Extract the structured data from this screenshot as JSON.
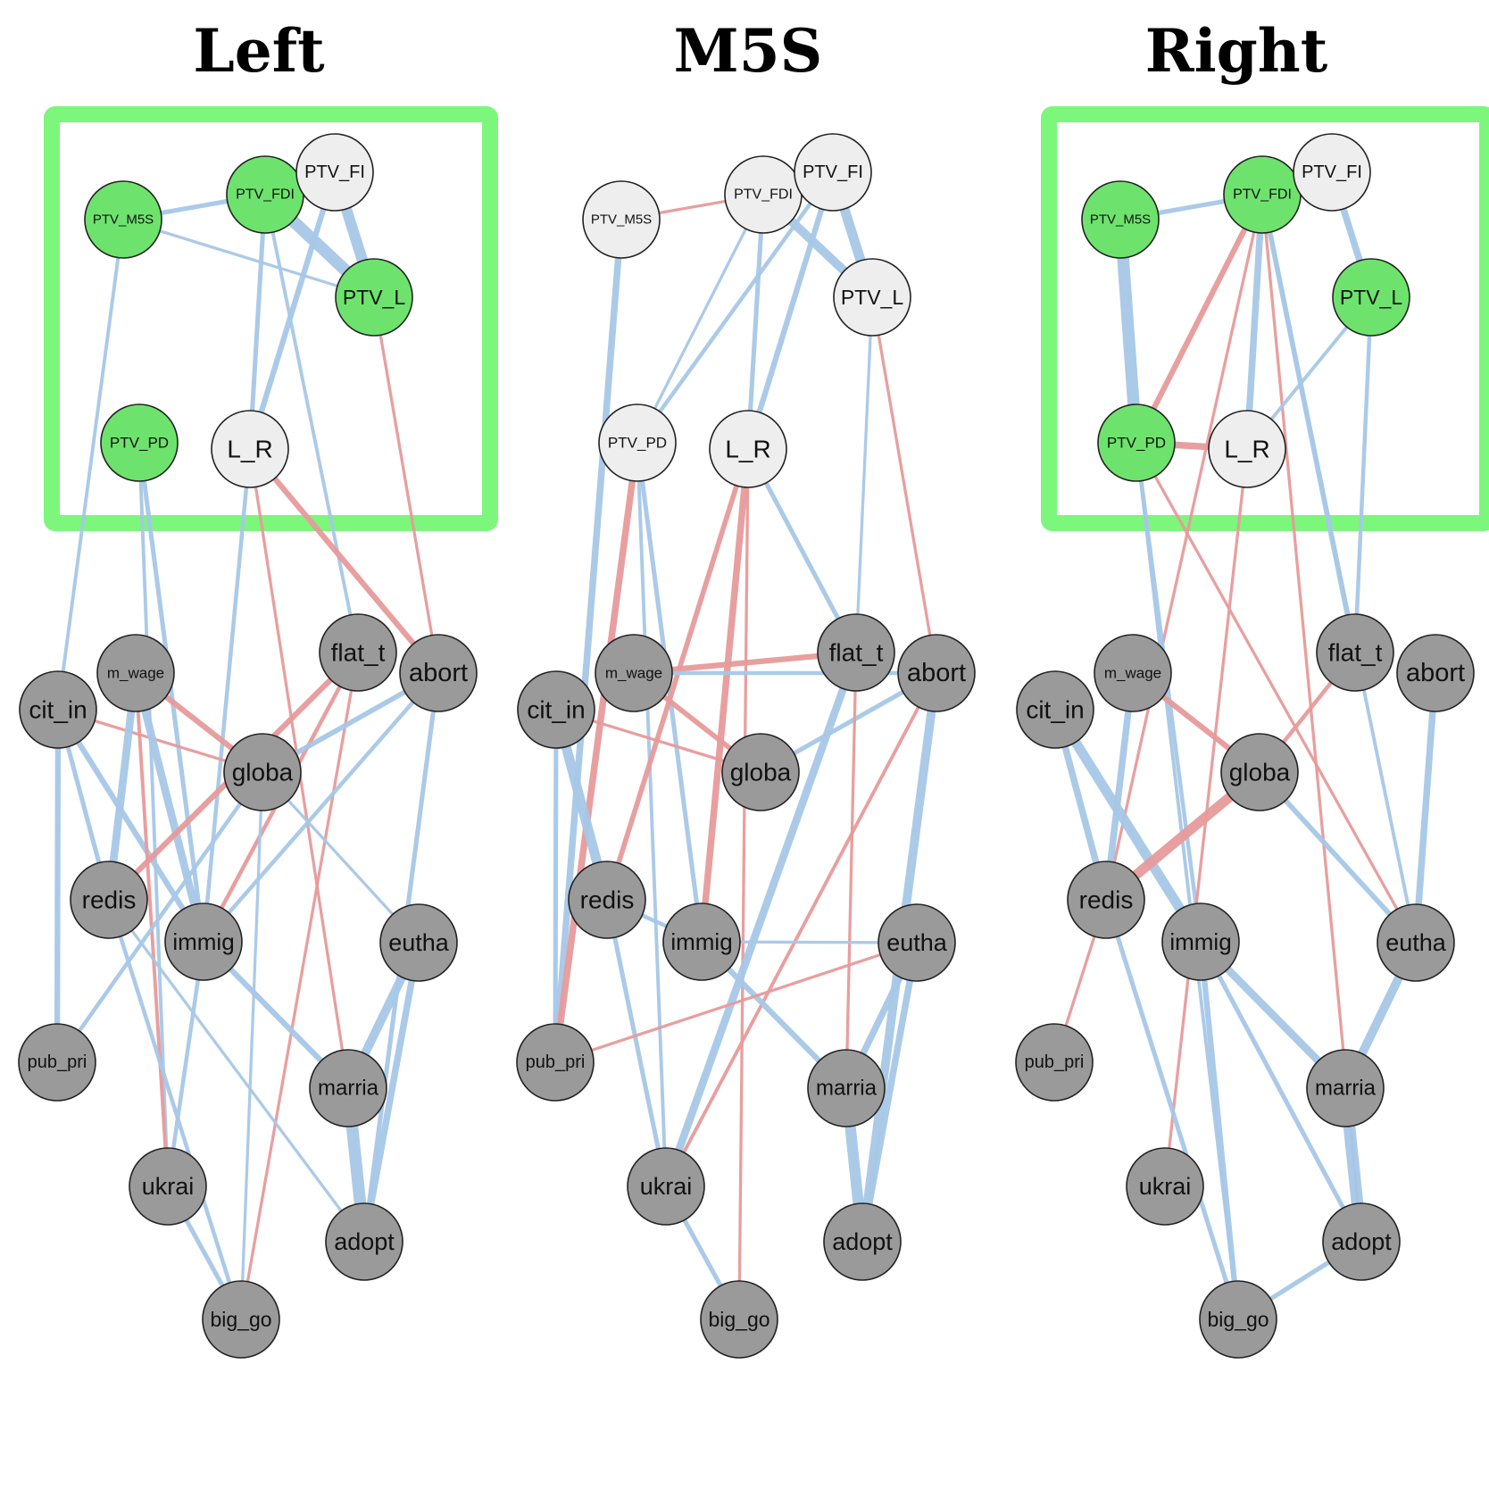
{
  "colors": {
    "positive_edge": "#a7c7e7",
    "negative_edge": "#e79a9a",
    "highlight_box": "#7cf77c",
    "highlight_node": "#6de36d",
    "neutral_ptv_node": "#eeeeee",
    "item_node": "#9a9a9a",
    "node_border": "#222222"
  },
  "panels": [
    {
      "title": "Left",
      "highlight_box": true,
      "highlighted_nodes": [
        "PTV_M5S",
        "PTV_FDI",
        "PTV_L",
        "PTV_PD"
      ],
      "edges": [
        {
          "from": "PTV_M5S",
          "to": "PTV_FDI",
          "sign": "positive",
          "weight": 0.3
        },
        {
          "from": "PTV_FDI",
          "to": "PTV_L",
          "sign": "positive",
          "weight": 1.0
        },
        {
          "from": "PTV_FI",
          "to": "PTV_L",
          "sign": "positive",
          "weight": 0.9
        },
        {
          "from": "PTV_M5S",
          "to": "PTV_L",
          "sign": "positive",
          "weight": 0.15
        },
        {
          "from": "PTV_M5S",
          "to": "cit_in",
          "sign": "positive",
          "weight": 0.2
        },
        {
          "from": "PTV_FDI",
          "to": "L_R",
          "sign": "positive",
          "weight": 0.3
        },
        {
          "from": "PTV_FI",
          "to": "L_R",
          "sign": "positive",
          "weight": 0.4
        },
        {
          "from": "PTV_FDI",
          "to": "flat_t",
          "sign": "positive",
          "weight": 0.2
        },
        {
          "from": "PTV_L",
          "to": "abort",
          "sign": "negative",
          "weight": 0.15
        },
        {
          "from": "L_R",
          "to": "abort",
          "sign": "negative",
          "weight": 0.4
        },
        {
          "from": "L_R",
          "to": "marria",
          "sign": "negative",
          "weight": 0.15
        },
        {
          "from": "L_R",
          "to": "immig",
          "sign": "positive",
          "weight": 0.25
        },
        {
          "from": "PTV_PD",
          "to": "immig",
          "sign": "positive",
          "weight": 0.3
        },
        {
          "from": "PTV_PD",
          "to": "ukrai",
          "sign": "positive",
          "weight": 0.2
        },
        {
          "from": "cit_in",
          "to": "pub_pri",
          "sign": "positive",
          "weight": 0.4
        },
        {
          "from": "cit_in",
          "to": "redis",
          "sign": "positive",
          "weight": 0.3
        },
        {
          "from": "cit_in",
          "to": "immig",
          "sign": "positive",
          "weight": 0.4
        },
        {
          "from": "cit_in",
          "to": "globa",
          "sign": "negative",
          "weight": 0.15
        },
        {
          "from": "m_wage",
          "to": "redis",
          "sign": "positive",
          "weight": 0.6
        },
        {
          "from": "m_wage",
          "to": "immig",
          "sign": "positive",
          "weight": 0.6
        },
        {
          "from": "m_wage",
          "to": "globa",
          "sign": "negative",
          "weight": 0.4
        },
        {
          "from": "m_wage",
          "to": "ukrai",
          "sign": "negative",
          "weight": 0.2
        },
        {
          "from": "flat_t",
          "to": "redis",
          "sign": "negative",
          "weight": 0.4
        },
        {
          "from": "flat_t",
          "to": "immig",
          "sign": "negative",
          "weight": 0.25
        },
        {
          "from": "flat_t",
          "to": "big_go",
          "sign": "negative",
          "weight": 0.15
        },
        {
          "from": "abort",
          "to": "globa",
          "sign": "positive",
          "weight": 0.35
        },
        {
          "from": "abort",
          "to": "immig",
          "sign": "positive",
          "weight": 0.25
        },
        {
          "from": "abort",
          "to": "adopt",
          "sign": "positive",
          "weight": 0.3
        },
        {
          "from": "globa",
          "to": "eutha",
          "sign": "positive",
          "weight": 0.15
        },
        {
          "from": "globa",
          "to": "big_go",
          "sign": "positive",
          "weight": 0.15
        },
        {
          "from": "globa",
          "to": "pub_pri",
          "sign": "positive",
          "weight": 0.25
        },
        {
          "from": "redis",
          "to": "big_go",
          "sign": "positive",
          "weight": 0.25
        },
        {
          "from": "redis",
          "to": "adopt",
          "sign": "positive",
          "weight": 0.15
        },
        {
          "from": "immig",
          "to": "marria",
          "sign": "positive",
          "weight": 0.4
        },
        {
          "from": "immig",
          "to": "ukrai",
          "sign": "positive",
          "weight": 0.25
        },
        {
          "from": "eutha",
          "to": "marria",
          "sign": "positive",
          "weight": 0.7
        },
        {
          "from": "eutha",
          "to": "adopt",
          "sign": "positive",
          "weight": 0.5
        },
        {
          "from": "marria",
          "to": "adopt",
          "sign": "positive",
          "weight": 1.0
        },
        {
          "from": "ukrai",
          "to": "big_go",
          "sign": "positive",
          "weight": 0.3
        }
      ]
    },
    {
      "title": "M5S",
      "highlight_box": false,
      "highlighted_nodes": [],
      "edges": [
        {
          "from": "PTV_M5S",
          "to": "PTV_FDI",
          "sign": "negative",
          "weight": 0.15
        },
        {
          "from": "PTV_FDI",
          "to": "PTV_L",
          "sign": "positive",
          "weight": 0.7
        },
        {
          "from": "PTV_FI",
          "to": "PTV_L",
          "sign": "positive",
          "weight": 0.8
        },
        {
          "from": "PTV_M5S",
          "to": "pub_pri",
          "sign": "positive",
          "weight": 0.5
        },
        {
          "from": "PTV_FDI",
          "to": "PTV_PD",
          "sign": "positive",
          "weight": 0.15
        },
        {
          "from": "PTV_FDI",
          "to": "L_R",
          "sign": "positive",
          "weight": 0.3
        },
        {
          "from": "PTV_FI",
          "to": "L_R",
          "sign": "positive",
          "weight": 0.4
        },
        {
          "from": "PTV_FI",
          "to": "PTV_PD",
          "sign": "positive",
          "weight": 0.25
        },
        {
          "from": "PTV_L",
          "to": "abort",
          "sign": "negative",
          "weight": 0.15
        },
        {
          "from": "PTV_L",
          "to": "flat_t",
          "sign": "positive",
          "weight": 0.15
        },
        {
          "from": "PTV_PD",
          "to": "pub_pri",
          "sign": "negative",
          "weight": 0.5
        },
        {
          "from": "PTV_PD",
          "to": "immig",
          "sign": "positive",
          "weight": 0.3
        },
        {
          "from": "PTV_PD",
          "to": "ukrai",
          "sign": "positive",
          "weight": 0.2
        },
        {
          "from": "L_R",
          "to": "immig",
          "sign": "negative",
          "weight": 0.5
        },
        {
          "from": "L_R",
          "to": "redis",
          "sign": "negative",
          "weight": 0.35
        },
        {
          "from": "L_R",
          "to": "flat_t",
          "sign": "positive",
          "weight": 0.3
        },
        {
          "from": "L_R",
          "to": "big_go",
          "sign": "negative",
          "weight": 0.15
        },
        {
          "from": "m_wage",
          "to": "flat_t",
          "sign": "negative",
          "weight": 0.4
        },
        {
          "from": "m_wage",
          "to": "globa",
          "sign": "negative",
          "weight": 0.35
        },
        {
          "from": "m_wage",
          "to": "abort",
          "sign": "positive",
          "weight": 0.25
        },
        {
          "from": "cit_in",
          "to": "redis",
          "sign": "positive",
          "weight": 0.8
        },
        {
          "from": "cit_in",
          "to": "globa",
          "sign": "negative",
          "weight": 0.15
        },
        {
          "from": "cit_in",
          "to": "pub_pri",
          "sign": "positive",
          "weight": 0.3
        },
        {
          "from": "globa",
          "to": "abort",
          "sign": "positive",
          "weight": 0.3
        },
        {
          "from": "flat_t",
          "to": "ukrai",
          "sign": "positive",
          "weight": 0.6
        },
        {
          "from": "flat_t",
          "to": "marria",
          "sign": "negative",
          "weight": 0.15
        },
        {
          "from": "abort",
          "to": "adopt",
          "sign": "positive",
          "weight": 0.7
        },
        {
          "from": "abort",
          "to": "ukrai",
          "sign": "negative",
          "weight": 0.2
        },
        {
          "from": "redis",
          "to": "immig",
          "sign": "positive",
          "weight": 0.25
        },
        {
          "from": "redis",
          "to": "ukrai",
          "sign": "positive",
          "weight": 0.3
        },
        {
          "from": "immig",
          "to": "eutha",
          "sign": "positive",
          "weight": 0.15
        },
        {
          "from": "immig",
          "to": "marria",
          "sign": "positive",
          "weight": 0.4
        },
        {
          "from": "eutha",
          "to": "marria",
          "sign": "positive",
          "weight": 0.5
        },
        {
          "from": "eutha",
          "to": "adopt",
          "sign": "positive",
          "weight": 0.5
        },
        {
          "from": "eutha",
          "to": "pub_pri",
          "sign": "negative",
          "weight": 0.15
        },
        {
          "from": "marria",
          "to": "adopt",
          "sign": "positive",
          "weight": 0.9
        },
        {
          "from": "ukrai",
          "to": "big_go",
          "sign": "positive",
          "weight": 0.3
        }
      ]
    },
    {
      "title": "Right",
      "highlight_box": true,
      "highlighted_nodes": [
        "PTV_M5S",
        "PTV_FDI",
        "PTV_L",
        "PTV_PD"
      ],
      "edges": [
        {
          "from": "PTV_M5S",
          "to": "PTV_FDI",
          "sign": "positive",
          "weight": 0.3
        },
        {
          "from": "PTV_M5S",
          "to": "PTV_PD",
          "sign": "positive",
          "weight": 1.0
        },
        {
          "from": "PTV_FI",
          "to": "PTV_L",
          "sign": "positive",
          "weight": 0.5
        },
        {
          "from": "PTV_FDI",
          "to": "PTV_PD",
          "sign": "negative",
          "weight": 0.4
        },
        {
          "from": "PTV_FDI",
          "to": "L_R",
          "sign": "positive",
          "weight": 0.5
        },
        {
          "from": "PTV_FDI",
          "to": "redis",
          "sign": "negative",
          "weight": 0.15
        },
        {
          "from": "PTV_FDI",
          "to": "flat_t",
          "sign": "positive",
          "weight": 0.35
        },
        {
          "from": "PTV_FDI",
          "to": "adopt",
          "sign": "negative",
          "weight": 0.15
        },
        {
          "from": "PTV_FDI",
          "to": "eutha",
          "sign": "positive",
          "weight": 0.2
        },
        {
          "from": "PTV_L",
          "to": "L_R",
          "sign": "positive",
          "weight": 0.2
        },
        {
          "from": "PTV_L",
          "to": "flat_t",
          "sign": "positive",
          "weight": 0.25
        },
        {
          "from": "PTV_PD",
          "to": "L_R",
          "sign": "negative",
          "weight": 0.5
        },
        {
          "from": "PTV_PD",
          "to": "eutha",
          "sign": "negative",
          "weight": 0.15
        },
        {
          "from": "PTV_PD",
          "to": "immig",
          "sign": "positive",
          "weight": 0.25
        },
        {
          "from": "PTV_PD",
          "to": "big_go",
          "sign": "positive",
          "weight": 0.2
        },
        {
          "from": "L_R",
          "to": "ukrai",
          "sign": "negative",
          "weight": 0.15
        },
        {
          "from": "cit_in",
          "to": "immig",
          "sign": "positive",
          "weight": 0.8
        },
        {
          "from": "cit_in",
          "to": "redis",
          "sign": "positive",
          "weight": 0.5
        },
        {
          "from": "m_wage",
          "to": "globa",
          "sign": "negative",
          "weight": 0.4
        },
        {
          "from": "m_wage",
          "to": "redis",
          "sign": "positive",
          "weight": 0.5
        },
        {
          "from": "flat_t",
          "to": "globa",
          "sign": "negative",
          "weight": 0.25
        },
        {
          "from": "globa",
          "to": "redis",
          "sign": "negative",
          "weight": 0.8
        },
        {
          "from": "globa",
          "to": "eutha",
          "sign": "positive",
          "weight": 0.35
        },
        {
          "from": "redis",
          "to": "pub_pri",
          "sign": "negative",
          "weight": 0.15
        },
        {
          "from": "redis",
          "to": "big_go",
          "sign": "positive",
          "weight": 0.3
        },
        {
          "from": "immig",
          "to": "marria",
          "sign": "positive",
          "weight": 0.6
        },
        {
          "from": "immig",
          "to": "adopt",
          "sign": "positive",
          "weight": 0.3
        },
        {
          "from": "immig",
          "to": "big_go",
          "sign": "positive",
          "weight": 0.4
        },
        {
          "from": "abort",
          "to": "eutha",
          "sign": "positive",
          "weight": 0.5
        },
        {
          "from": "eutha",
          "to": "marria",
          "sign": "positive",
          "weight": 0.7
        },
        {
          "from": "marria",
          "to": "adopt",
          "sign": "positive",
          "weight": 1.0
        },
        {
          "from": "adopt",
          "to": "big_go",
          "sign": "positive",
          "weight": 0.3
        }
      ]
    }
  ],
  "nodes": [
    {
      "id": "PTV_M5S",
      "label": "PTV_M5S",
      "group": "ptv"
    },
    {
      "id": "PTV_FDI",
      "label": "PTV_FDI",
      "group": "ptv"
    },
    {
      "id": "PTV_FI",
      "label": "PTV_FI",
      "group": "ptv"
    },
    {
      "id": "PTV_L",
      "label": "PTV_L",
      "group": "ptv"
    },
    {
      "id": "PTV_PD",
      "label": "PTV_PD",
      "group": "ptv"
    },
    {
      "id": "L_R",
      "label": "L_R",
      "group": "ptv"
    },
    {
      "id": "cit_in",
      "label": "cit_in",
      "group": "item"
    },
    {
      "id": "m_wage",
      "label": "m_wage",
      "group": "item"
    },
    {
      "id": "flat_t",
      "label": "flat_t",
      "group": "item"
    },
    {
      "id": "abort",
      "label": "abort",
      "group": "item"
    },
    {
      "id": "globa",
      "label": "globa",
      "group": "item"
    },
    {
      "id": "redis",
      "label": "redis",
      "group": "item"
    },
    {
      "id": "immig",
      "label": "immig",
      "group": "item"
    },
    {
      "id": "eutha",
      "label": "eutha",
      "group": "item"
    },
    {
      "id": "pub_pri",
      "label": "pub_pri",
      "group": "item"
    },
    {
      "id": "marria",
      "label": "marria",
      "group": "item"
    },
    {
      "id": "ukrai",
      "label": "ukrai",
      "group": "item"
    },
    {
      "id": "adopt",
      "label": "adopt",
      "group": "item"
    },
    {
      "id": "big_go",
      "label": "big_go",
      "group": "item"
    }
  ]
}
